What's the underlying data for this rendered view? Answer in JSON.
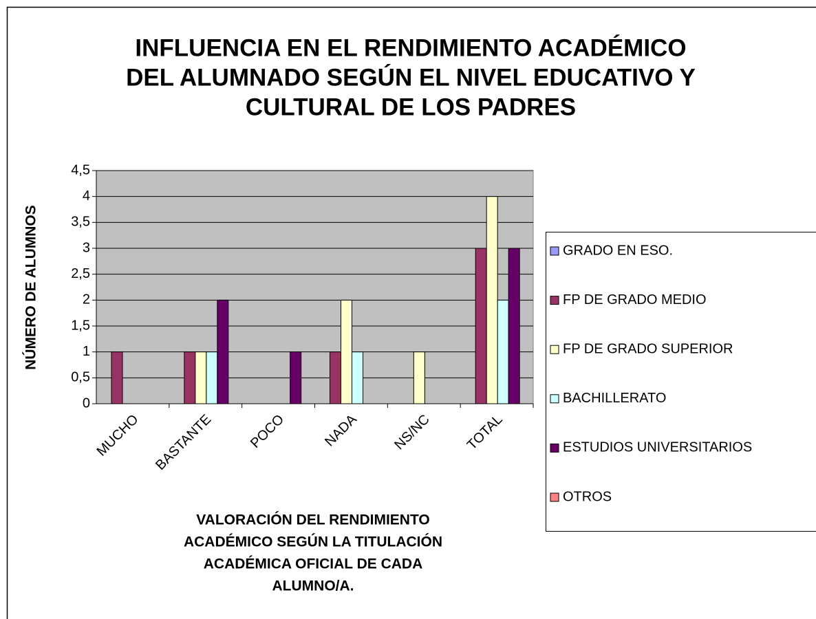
{
  "chart_data": {
    "type": "bar",
    "title": [
      "INFLUENCIA EN EL RENDIMIENTO ACADÉMICO",
      "DEL ALUMNADO SEGÚN EL NIVEL EDUCATIVO Y",
      "CULTURAL DE LOS PADRES"
    ],
    "y_label": "NÚMERO DE ALUMNOS",
    "x_label": [
      "VALORACIÓN DEL RENDIMIENTO",
      "ACADÉMICO SEGÚN LA TITULACIÓN",
      "ACADÉMICA OFICIAL DE CADA",
      "ALUMNO/A."
    ],
    "categories": [
      "MUCHO",
      "BASTANTE",
      "POCO",
      "NADA",
      "NS/NC",
      "TOTAL"
    ],
    "series": [
      {
        "name": "GRADO EN ESO.",
        "color": "#9999ff",
        "values": [
          0,
          0,
          0,
          0,
          0,
          0
        ]
      },
      {
        "name": "FP DE GRADO MEDIO",
        "color": "#993366",
        "values": [
          1,
          1,
          0,
          1,
          0,
          3
        ]
      },
      {
        "name": "FP DE GRADO SUPERIOR",
        "color": "#ffffcc",
        "values": [
          0,
          1,
          0,
          2,
          1,
          4
        ]
      },
      {
        "name": "BACHILLERATO",
        "color": "#ccffff",
        "values": [
          0,
          1,
          0,
          1,
          0,
          2
        ]
      },
      {
        "name": "ESTUDIOS UNIVERSITARIOS",
        "color": "#660066",
        "values": [
          0,
          2,
          1,
          0,
          0,
          3
        ]
      },
      {
        "name": "OTROS",
        "color": "#ff8080",
        "values": [
          0,
          0,
          0,
          0,
          0,
          0
        ]
      }
    ],
    "ylim": [
      0,
      4.5
    ],
    "yticks": [
      0,
      {
        "value": 0.5,
        "label": "0,5"
      },
      1,
      {
        "value": 1.5,
        "label": "1,5"
      },
      2,
      {
        "value": 2.5,
        "label": "2,5"
      },
      3,
      {
        "value": 3.5,
        "label": "3,5"
      },
      4,
      {
        "value": 4.5,
        "label": "4,5"
      }
    ],
    "grid": true,
    "plot_background": "#c0c0c0",
    "legend": "right"
  }
}
